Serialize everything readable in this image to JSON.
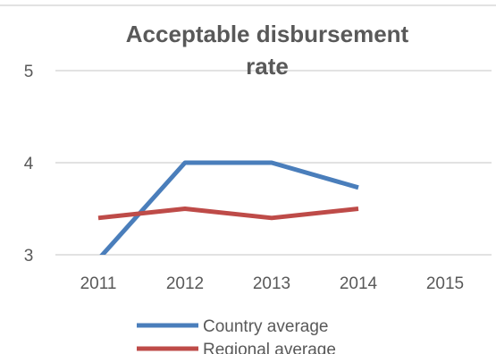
{
  "chart_data": {
    "type": "line",
    "title_lines": [
      "Acceptable disbursement",
      "rate"
    ],
    "categories": [
      "2011",
      "2012",
      "2013",
      "2014",
      "2015"
    ],
    "ylim": [
      3,
      5
    ],
    "yticks": [
      "3",
      "4",
      "5"
    ],
    "grid": true,
    "legend_position": "bottom",
    "series": [
      {
        "name": "Country average",
        "color": "#4a7ebb",
        "values": [
          2.95,
          4.0,
          4.0,
          3.73,
          null
        ]
      },
      {
        "name": "Regional average",
        "color": "#be4b48",
        "values": [
          3.4,
          3.5,
          3.4,
          3.5,
          null
        ]
      }
    ]
  }
}
